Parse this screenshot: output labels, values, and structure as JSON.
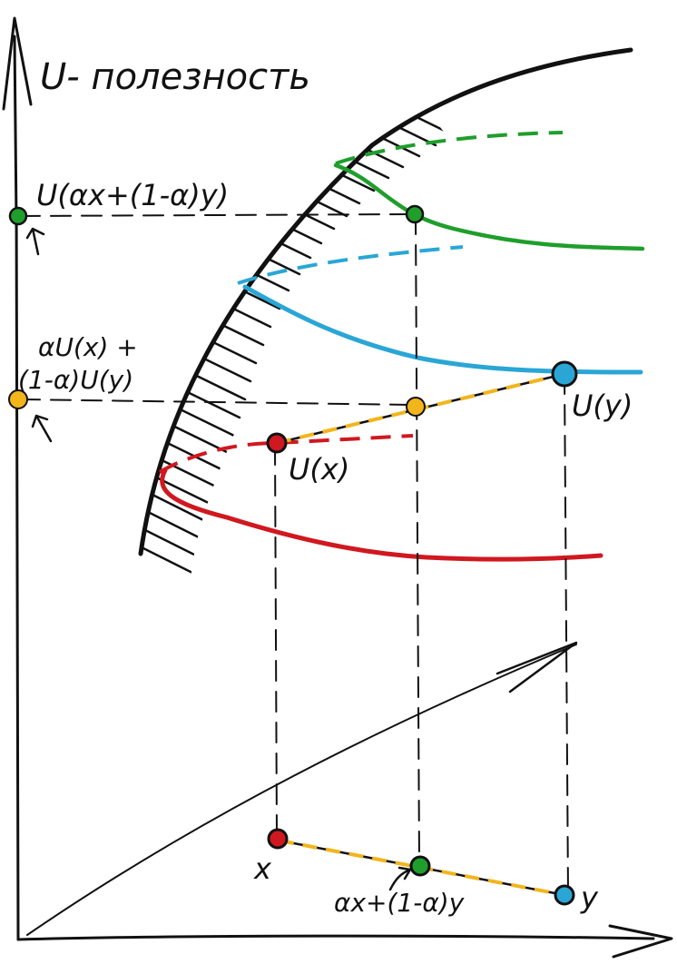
{
  "axis": {
    "y_label": "U- полезность"
  },
  "labels": {
    "u_mix": "U(αx+(1-α)y)",
    "combo_line1": "αU(x) +",
    "combo_line2": "(1-α)U(y)",
    "u_y": "U(y)",
    "u_x": "U(x)",
    "point_x": "x",
    "point_y": "y",
    "point_mix": "αx+(1-α)y"
  },
  "colors": {
    "ink": "#111111",
    "green": "#1f9e2c",
    "blue": "#2aa6d6",
    "red": "#d01820",
    "yellow": "#f2b51c"
  }
}
